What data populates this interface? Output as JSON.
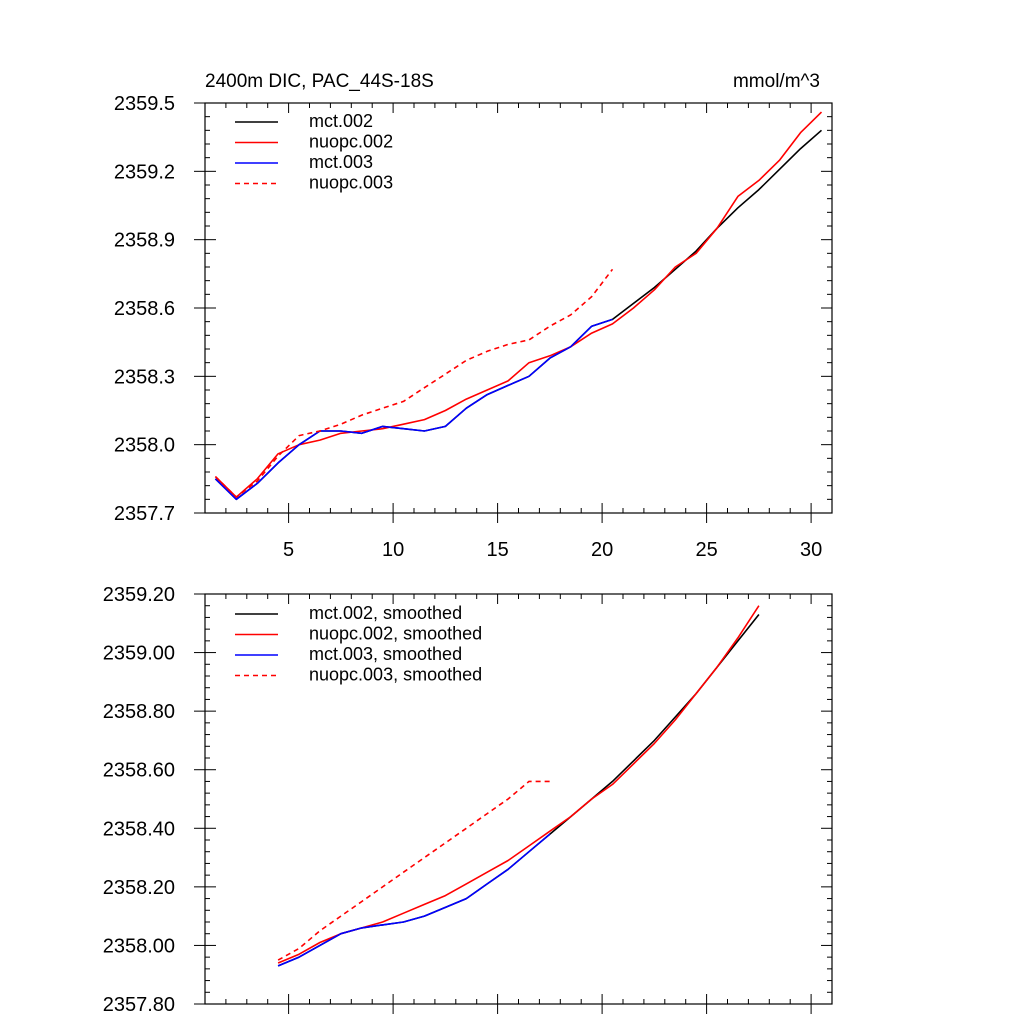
{
  "chart_data": [
    {
      "type": "line",
      "title_left": "2400m DIC, PAC_44S-18S",
      "title_right": "mmol/m^3",
      "xlabel": "",
      "ylabel": "",
      "xlim": [
        1,
        31
      ],
      "ylim": [
        2357.7,
        2359.5
      ],
      "xticks": [
        5,
        10,
        15,
        20,
        25,
        30
      ],
      "xticklabels": [
        "5",
        "10",
        "15",
        "20",
        "25",
        "30"
      ],
      "yticks": [
        2357.7,
        2358.0,
        2358.3,
        2358.6,
        2358.9,
        2359.2,
        2359.5
      ],
      "yticklabels": [
        "2357.7",
        "2358.0",
        "2358.3",
        "2358.6",
        "2358.9",
        "2359.2",
        "2359.5"
      ],
      "legend_position": "top-left",
      "series": [
        {
          "name": "mct.002",
          "color": "#000000",
          "dash": "solid",
          "x": [
            1.5,
            2.5,
            3.5,
            4.5,
            5.5,
            6.5,
            7.5,
            8.5,
            9.5,
            10.5,
            11.5,
            12.5,
            13.5,
            14.5,
            15.5,
            16.5,
            17.5,
            18.5,
            19.5,
            20.5,
            21.5,
            22.5,
            23.5,
            24.5,
            25.5,
            26.5,
            27.5,
            28.5,
            29.5,
            30.5
          ],
          "values": [
            2357.85,
            2357.76,
            2357.83,
            2357.92,
            2358.0,
            2358.06,
            2358.06,
            2358.05,
            2358.08,
            2358.07,
            2358.06,
            2358.08,
            2358.16,
            2358.22,
            2358.26,
            2358.3,
            2358.38,
            2358.43,
            2358.52,
            2358.55,
            2358.62,
            2358.69,
            2358.77,
            2358.85,
            2358.95,
            2359.04,
            2359.12,
            2359.21,
            2359.3,
            2359.38
          ]
        },
        {
          "name": "nuopc.002",
          "color": "#ff0000",
          "dash": "solid",
          "x": [
            1.5,
            2.5,
            3.5,
            4.5,
            5.5,
            6.5,
            7.5,
            8.5,
            9.5,
            10.5,
            11.5,
            12.5,
            13.5,
            14.5,
            15.5,
            16.5,
            17.5,
            18.5,
            19.5,
            20.5,
            21.5,
            22.5,
            23.5,
            24.5,
            25.5,
            26.5,
            27.5,
            28.5,
            29.5,
            30.5
          ],
          "values": [
            2357.86,
            2357.77,
            2357.85,
            2357.96,
            2358.0,
            2358.02,
            2358.05,
            2358.06,
            2358.07,
            2358.09,
            2358.11,
            2358.15,
            2358.2,
            2358.24,
            2358.28,
            2358.36,
            2358.39,
            2358.43,
            2358.49,
            2358.53,
            2358.6,
            2358.68,
            2358.78,
            2358.84,
            2358.95,
            2359.09,
            2359.16,
            2359.25,
            2359.37,
            2359.46
          ]
        },
        {
          "name": "mct.003",
          "color": "#0000ff",
          "dash": "solid",
          "x": [
            1.5,
            2.5,
            3.5,
            4.5,
            5.5,
            6.5,
            7.5,
            8.5,
            9.5,
            10.5,
            11.5,
            12.5,
            13.5,
            14.5,
            15.5,
            16.5,
            17.5,
            18.5,
            19.5,
            20.5
          ],
          "values": [
            2357.85,
            2357.76,
            2357.83,
            2357.92,
            2358.0,
            2358.06,
            2358.06,
            2358.05,
            2358.08,
            2358.07,
            2358.06,
            2358.08,
            2358.16,
            2358.22,
            2358.26,
            2358.3,
            2358.38,
            2358.43,
            2358.52,
            2358.55
          ]
        },
        {
          "name": "nuopc.003",
          "color": "#ff0000",
          "dash": "dashed",
          "x": [
            1.5,
            2.5,
            3.5,
            4.5,
            5.5,
            6.5,
            7.5,
            8.5,
            9.5,
            10.5,
            11.5,
            12.5,
            13.5,
            14.5,
            15.5,
            16.5,
            17.5,
            18.5,
            19.5,
            20.5
          ],
          "values": [
            2357.86,
            2357.77,
            2357.84,
            2357.95,
            2358.04,
            2358.06,
            2358.09,
            2358.13,
            2358.16,
            2358.19,
            2358.25,
            2358.31,
            2358.37,
            2358.41,
            2358.44,
            2358.46,
            2358.52,
            2358.57,
            2358.65,
            2358.77
          ]
        }
      ]
    },
    {
      "type": "line",
      "xlabel": "",
      "ylabel": "",
      "xlim": [
        1,
        31
      ],
      "ylim": [
        2357.8,
        2359.2
      ],
      "xticks": [
        5,
        10,
        15,
        20,
        25,
        30
      ],
      "yticks": [
        2357.8,
        2358.0,
        2358.2,
        2358.4,
        2358.6,
        2358.8,
        2359.0,
        2359.2
      ],
      "yticklabels": [
        "2357.80",
        "2358.00",
        "2358.20",
        "2358.40",
        "2358.60",
        "2358.80",
        "2359.00",
        "2359.20"
      ],
      "legend_position": "top-left",
      "series": [
        {
          "name": "mct.002, smoothed",
          "color": "#000000",
          "dash": "solid",
          "x": [
            4.5,
            5.5,
            6.5,
            7.5,
            8.5,
            9.5,
            10.5,
            11.5,
            12.5,
            13.5,
            14.5,
            15.5,
            16.5,
            17.5,
            18.5,
            19.5,
            20.5,
            21.5,
            22.5,
            23.5,
            24.5,
            25.5,
            26.5,
            27.5
          ],
          "values": [
            2357.93,
            2357.96,
            2358.0,
            2358.04,
            2358.06,
            2358.07,
            2358.08,
            2358.1,
            2358.13,
            2358.16,
            2358.21,
            2358.26,
            2358.32,
            2358.38,
            2358.44,
            2358.5,
            2358.56,
            2358.63,
            2358.7,
            2358.78,
            2358.86,
            2358.95,
            2359.04,
            2359.13
          ]
        },
        {
          "name": "nuopc.002, smoothed",
          "color": "#ff0000",
          "dash": "solid",
          "x": [
            4.5,
            5.5,
            6.5,
            7.5,
            8.5,
            9.5,
            10.5,
            11.5,
            12.5,
            13.5,
            14.5,
            15.5,
            16.5,
            17.5,
            18.5,
            19.5,
            20.5,
            21.5,
            22.5,
            23.5,
            24.5,
            25.5,
            26.5,
            27.5
          ],
          "values": [
            2357.94,
            2357.97,
            2358.01,
            2358.04,
            2358.06,
            2358.08,
            2358.11,
            2358.14,
            2358.17,
            2358.21,
            2358.25,
            2358.29,
            2358.34,
            2358.39,
            2358.44,
            2358.5,
            2358.55,
            2358.62,
            2358.69,
            2358.77,
            2358.86,
            2358.95,
            2359.05,
            2359.16
          ]
        },
        {
          "name": "mct.003, smoothed",
          "color": "#0000ff",
          "dash": "solid",
          "x": [
            4.5,
            5.5,
            6.5,
            7.5,
            8.5,
            9.5,
            10.5,
            11.5,
            12.5,
            13.5,
            14.5,
            15.5,
            16.5,
            17.5
          ],
          "values": [
            2357.93,
            2357.96,
            2358.0,
            2358.04,
            2358.06,
            2358.07,
            2358.08,
            2358.1,
            2358.13,
            2358.16,
            2358.21,
            2358.26,
            2358.32,
            2358.38
          ]
        },
        {
          "name": "nuopc.003, smoothed",
          "color": "#ff0000",
          "dash": "dashed",
          "x": [
            4.5,
            5.5,
            6.5,
            7.5,
            8.5,
            9.5,
            10.5,
            11.5,
            12.5,
            13.5,
            14.5,
            15.5,
            16.5,
            17.5
          ],
          "values": [
            2357.95,
            2357.99,
            2358.05,
            2358.1,
            2358.15,
            2358.2,
            2358.25,
            2358.3,
            2358.35,
            2358.4,
            2358.45,
            2358.5,
            2358.56,
            2358.56
          ]
        }
      ]
    }
  ]
}
